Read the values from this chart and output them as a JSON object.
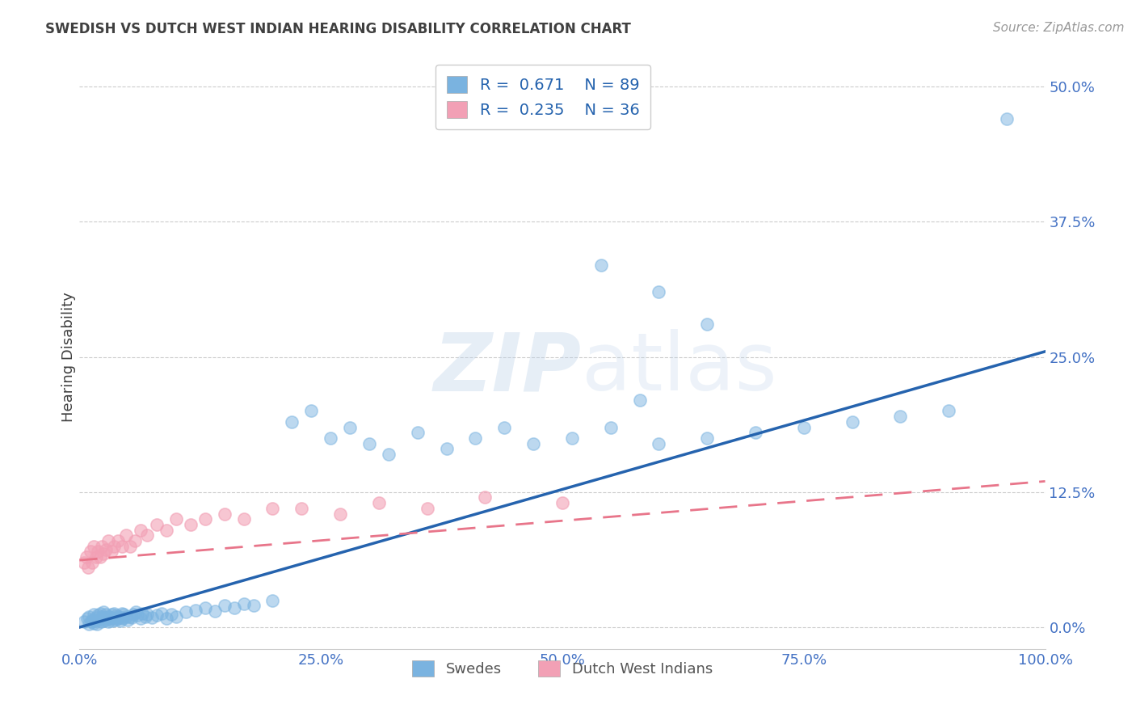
{
  "title": "SWEDISH VS DUTCH WEST INDIAN HEARING DISABILITY CORRELATION CHART",
  "source": "Source: ZipAtlas.com",
  "ylabel": "Hearing Disability",
  "xlim": [
    0.0,
    1.0
  ],
  "ylim": [
    -0.02,
    0.52
  ],
  "xticks": [
    0.0,
    0.25,
    0.5,
    0.75,
    1.0
  ],
  "xtick_labels": [
    "0.0%",
    "25.0%",
    "50.0%",
    "75.0%",
    "100.0%"
  ],
  "yticks": [
    0.0,
    0.125,
    0.25,
    0.375,
    0.5
  ],
  "ytick_labels": [
    "0.0%",
    "12.5%",
    "25.0%",
    "37.5%",
    "50.0%"
  ],
  "blue_color": "#7ab3e0",
  "pink_color": "#f2a0b5",
  "blue_line_color": "#2563ae",
  "pink_line_color": "#e8758a",
  "grid_color": "#cccccc",
  "tick_label_color": "#4472c4",
  "title_color": "#404040",
  "source_color": "#999999",
  "R_blue": 0.671,
  "N_blue": 89,
  "R_pink": 0.235,
  "N_pink": 36,
  "legend_label_blue": "Swedes",
  "legend_label_pink": "Dutch West Indians",
  "figsize": [
    14.06,
    8.92
  ],
  "dpi": 100,
  "blue_x": [
    0.005,
    0.008,
    0.01,
    0.01,
    0.012,
    0.013,
    0.015,
    0.015,
    0.016,
    0.017,
    0.018,
    0.019,
    0.02,
    0.021,
    0.022,
    0.023,
    0.024,
    0.025,
    0.025,
    0.026,
    0.027,
    0.028,
    0.03,
    0.031,
    0.032,
    0.033,
    0.034,
    0.035,
    0.036,
    0.037,
    0.038,
    0.039,
    0.04,
    0.042,
    0.043,
    0.044,
    0.045,
    0.046,
    0.048,
    0.05,
    0.052,
    0.054,
    0.056,
    0.058,
    0.06,
    0.063,
    0.065,
    0.068,
    0.07,
    0.075,
    0.08,
    0.085,
    0.09,
    0.095,
    0.1,
    0.11,
    0.12,
    0.13,
    0.14,
    0.15,
    0.16,
    0.17,
    0.18,
    0.2,
    0.22,
    0.24,
    0.26,
    0.28,
    0.3,
    0.32,
    0.35,
    0.38,
    0.41,
    0.44,
    0.47,
    0.51,
    0.55,
    0.6,
    0.65,
    0.7,
    0.75,
    0.8,
    0.85,
    0.9,
    0.96,
    0.54,
    0.6,
    0.65,
    0.58
  ],
  "blue_y": [
    0.005,
    0.008,
    0.003,
    0.01,
    0.005,
    0.007,
    0.004,
    0.012,
    0.006,
    0.009,
    0.003,
    0.011,
    0.007,
    0.013,
    0.005,
    0.008,
    0.01,
    0.006,
    0.014,
    0.009,
    0.012,
    0.007,
    0.005,
    0.01,
    0.008,
    0.012,
    0.006,
    0.009,
    0.013,
    0.007,
    0.011,
    0.008,
    0.01,
    0.006,
    0.009,
    0.013,
    0.008,
    0.012,
    0.01,
    0.007,
    0.01,
    0.009,
    0.012,
    0.014,
    0.011,
    0.008,
    0.013,
    0.01,
    0.012,
    0.009,
    0.011,
    0.013,
    0.008,
    0.012,
    0.01,
    0.014,
    0.016,
    0.018,
    0.015,
    0.02,
    0.018,
    0.022,
    0.02,
    0.025,
    0.19,
    0.2,
    0.175,
    0.185,
    0.17,
    0.16,
    0.18,
    0.165,
    0.175,
    0.185,
    0.17,
    0.175,
    0.185,
    0.17,
    0.175,
    0.18,
    0.185,
    0.19,
    0.195,
    0.2,
    0.47,
    0.335,
    0.31,
    0.28,
    0.21
  ],
  "pink_x": [
    0.005,
    0.007,
    0.009,
    0.011,
    0.013,
    0.015,
    0.017,
    0.019,
    0.021,
    0.023,
    0.025,
    0.027,
    0.03,
    0.033,
    0.036,
    0.04,
    0.044,
    0.048,
    0.052,
    0.057,
    0.063,
    0.07,
    0.08,
    0.09,
    0.1,
    0.115,
    0.13,
    0.15,
    0.17,
    0.2,
    0.23,
    0.27,
    0.31,
    0.36,
    0.42,
    0.5
  ],
  "pink_y": [
    0.06,
    0.065,
    0.055,
    0.07,
    0.06,
    0.075,
    0.065,
    0.07,
    0.065,
    0.075,
    0.068,
    0.072,
    0.08,
    0.07,
    0.075,
    0.08,
    0.075,
    0.085,
    0.075,
    0.08,
    0.09,
    0.085,
    0.095,
    0.09,
    0.1,
    0.095,
    0.1,
    0.105,
    0.1,
    0.11,
    0.11,
    0.105,
    0.115,
    0.11,
    0.12,
    0.115
  ]
}
